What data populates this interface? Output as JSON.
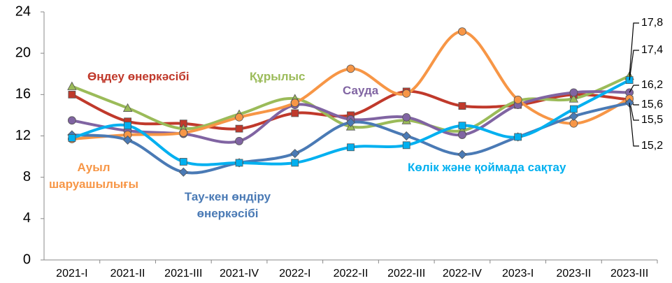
{
  "chart_data": {
    "type": "line",
    "categories": [
      "2021-I",
      "2021-II",
      "2021-III",
      "2021-IV",
      "2022-I",
      "2022-II",
      "2022-III",
      "2022-IV",
      "2023-I",
      "2023-II",
      "2023-III"
    ],
    "ylim": [
      0,
      24
    ],
    "yticks": [
      0,
      4,
      8,
      12,
      16,
      20,
      24
    ],
    "grid": false,
    "smooth": true,
    "series": [
      {
        "name": "Өңдеу өнеркәсібі",
        "color": "#c0392b",
        "marker": "square",
        "values": [
          16.0,
          13.4,
          13.2,
          12.7,
          14.2,
          14.0,
          16.3,
          14.9,
          15.0,
          16.0,
          15.5
        ],
        "value_labels": [
          null,
          null,
          null,
          null,
          null,
          null,
          null,
          null,
          null,
          null,
          "15,5"
        ]
      },
      {
        "name": "Құрылыс",
        "color": "#9bbb59",
        "marker": "triangle",
        "values": [
          16.8,
          14.7,
          12.7,
          14.1,
          15.6,
          12.9,
          13.5,
          12.5,
          15.4,
          15.6,
          17.8
        ],
        "value_labels": [
          null,
          null,
          null,
          null,
          null,
          null,
          null,
          null,
          null,
          null,
          "17,8"
        ]
      },
      {
        "name": "Сауда",
        "color": "#8064a2",
        "marker": "circle",
        "values": [
          13.5,
          12.5,
          12.2,
          11.5,
          15.0,
          13.6,
          13.8,
          12.1,
          15.0,
          16.2,
          16.2
        ],
        "value_labels": [
          null,
          null,
          null,
          null,
          null,
          null,
          null,
          null,
          null,
          null,
          "16,2"
        ]
      },
      {
        "name": "Ауыл шаруашылығы",
        "color": "#f79646",
        "marker": "circle",
        "values": [
          11.7,
          12.1,
          12.3,
          13.8,
          15.2,
          18.5,
          16.1,
          22.1,
          15.5,
          13.2,
          15.6
        ],
        "value_labels": [
          null,
          null,
          null,
          null,
          null,
          null,
          null,
          null,
          null,
          null,
          "15,6"
        ]
      },
      {
        "name": "Тау-кен өндіру өнеркәсібі",
        "color": "#4a7ab5",
        "marker": "diamond",
        "values": [
          12.1,
          11.6,
          8.5,
          9.4,
          10.3,
          13.3,
          12.0,
          10.2,
          11.9,
          13.9,
          15.2
        ],
        "value_labels": [
          null,
          null,
          null,
          null,
          null,
          null,
          null,
          null,
          null,
          null,
          "15,2"
        ]
      },
      {
        "name": "Көлік және қоймада сақтау",
        "color": "#00b0f0",
        "marker": "square",
        "values": [
          11.8,
          13.0,
          9.5,
          9.4,
          9.4,
          10.9,
          11.1,
          13.0,
          11.9,
          14.6,
          17.4
        ],
        "value_labels": [
          null,
          null,
          null,
          null,
          null,
          null,
          null,
          null,
          null,
          null,
          "17,4"
        ]
      }
    ]
  }
}
